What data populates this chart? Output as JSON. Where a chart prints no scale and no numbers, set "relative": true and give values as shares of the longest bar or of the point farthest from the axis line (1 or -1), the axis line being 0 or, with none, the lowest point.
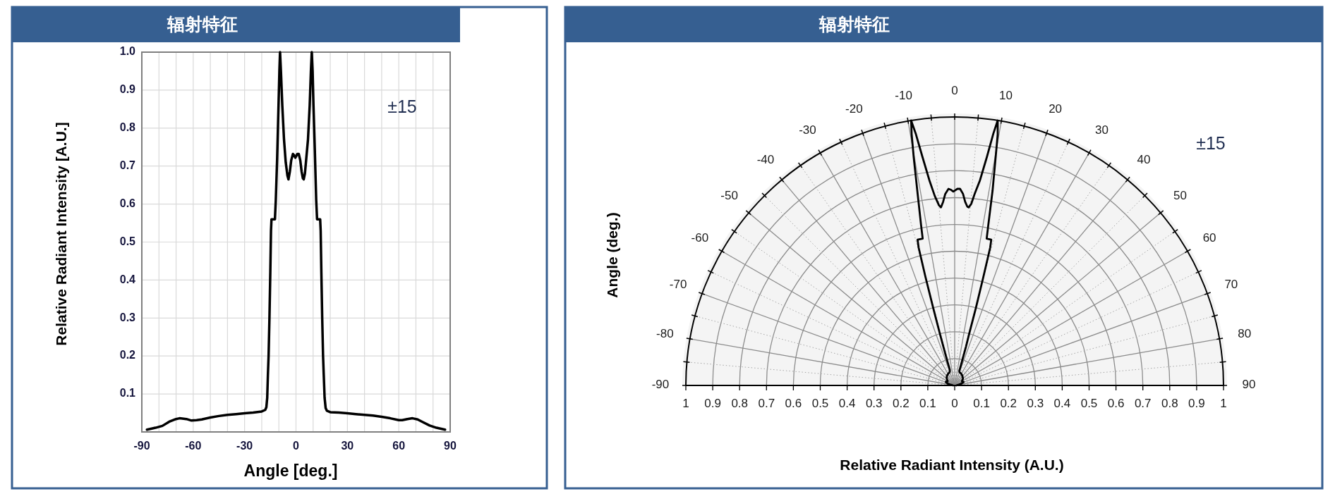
{
  "chart_data": [
    {
      "type": "line",
      "title": "辐射特征",
      "xlabel": "Angle [deg.]",
      "ylabel": "Relative Radiant Intensity [A.U.]",
      "annotations": [
        "±15"
      ],
      "x": [
        -87,
        -82,
        -78,
        -74,
        -70,
        -68,
        -64,
        -61,
        -58,
        -55,
        -50,
        -45,
        -40,
        -35,
        -30,
        -25,
        -20,
        -18,
        -17.3,
        -16.8,
        -16.4,
        -16,
        -15.5,
        -15,
        -14.6,
        -14.3,
        -12.3,
        -11.8,
        -11,
        -10.2,
        -9.7,
        -9.3,
        -8.8,
        -8,
        -7,
        -6,
        -5,
        -4.4,
        -3.6,
        -2.8,
        -1.8,
        -1,
        -0.4,
        0.2,
        0.8,
        1.6,
        2.5,
        3.3,
        4,
        4.5,
        5.2,
        6,
        7,
        8,
        8.7,
        9.2,
        9.7,
        10.2,
        11,
        11.8,
        12.3,
        14.1,
        14.4,
        14.8,
        15.3,
        15.8,
        16.2,
        16.7,
        17.3,
        18,
        20,
        25,
        30,
        35,
        40,
        45,
        50,
        55,
        60,
        62,
        65,
        68,
        71,
        74,
        78,
        82,
        87
      ],
      "series": [
        {
          "color": "#000000",
          "values": [
            0.006,
            0.011,
            0.016,
            0.027,
            0.034,
            0.036,
            0.034,
            0.03,
            0.031,
            0.033,
            0.038,
            0.042,
            0.045,
            0.047,
            0.049,
            0.051,
            0.054,
            0.058,
            0.065,
            0.09,
            0.15,
            0.2,
            0.3,
            0.42,
            0.53,
            0.56,
            0.56,
            0.61,
            0.72,
            0.86,
            0.95,
            1.0,
            0.95,
            0.86,
            0.77,
            0.71,
            0.675,
            0.665,
            0.685,
            0.715,
            0.732,
            0.728,
            0.722,
            0.727,
            0.732,
            0.732,
            0.715,
            0.685,
            0.668,
            0.665,
            0.68,
            0.72,
            0.77,
            0.86,
            0.95,
            1.0,
            0.95,
            0.86,
            0.74,
            0.61,
            0.56,
            0.56,
            0.53,
            0.42,
            0.3,
            0.2,
            0.15,
            0.09,
            0.063,
            0.056,
            0.052,
            0.051,
            0.049,
            0.047,
            0.045,
            0.043,
            0.04,
            0.036,
            0.031,
            0.031,
            0.034,
            0.036,
            0.033,
            0.026,
            0.017,
            0.011,
            0.006
          ]
        }
      ],
      "xlim": [
        -90,
        90
      ],
      "xticks": [
        -90,
        {
          "value": -80,
          "label": null
        },
        {
          "value": -70,
          "label": null
        },
        -60,
        {
          "value": -50,
          "label": null
        },
        {
          "value": -40,
          "label": null
        },
        -30,
        {
          "value": -20,
          "label": null
        },
        {
          "value": -10,
          "label": null
        },
        0,
        {
          "value": 10,
          "label": null
        },
        {
          "value": 20,
          "label": null
        },
        30,
        {
          "value": 40,
          "label": null
        },
        {
          "value": 50,
          "label": null
        },
        60,
        {
          "value": 70,
          "label": null
        },
        {
          "value": 80,
          "label": null
        },
        90
      ],
      "ylim": [
        0,
        1
      ],
      "yticks": [
        0.1,
        0.2,
        0.3,
        0.4,
        0.5,
        0.6,
        0.7,
        0.8,
        0.9,
        {
          "value": 1,
          "label": "1.0"
        }
      ],
      "grid": true
    },
    {
      "type": "line",
      "title": "辐射特征",
      "xlabel": "Relative Radiant Intensity (A.U.)",
      "ylabel": "Angle (deg.)",
      "annotations": [
        "±15",
        "-90",
        "-80",
        "-70",
        "-60",
        "-50",
        "-40",
        "-30",
        "-20",
        "-10",
        "0",
        "10",
        "20",
        "30",
        "40",
        "50",
        "60",
        "70",
        "80",
        "90"
      ],
      "x": [
        -0.006,
        -0.011,
        -0.016,
        -0.026,
        -0.032,
        -0.033,
        -0.031,
        -0.026,
        -0.026,
        -0.027,
        -0.029,
        -0.03,
        -0.029,
        -0.027,
        -0.025,
        -0.022,
        -0.018,
        -0.018,
        -0.019,
        -0.026,
        -0.042,
        -0.055,
        -0.08,
        -0.109,
        -0.134,
        -0.138,
        -0.119,
        -0.125,
        -0.137,
        -0.152,
        -0.16,
        -0.162,
        -0.145,
        -0.12,
        -0.094,
        -0.074,
        -0.059,
        -0.051,
        -0.043,
        -0.035,
        -0.023,
        -0.013,
        -0.005,
        0.003,
        0.01,
        0.02,
        0.031,
        0.039,
        0.047,
        0.052,
        0.062,
        0.075,
        0.094,
        0.12,
        0.144,
        0.16,
        0.16,
        0.152,
        0.141,
        0.125,
        0.119,
        0.136,
        0.132,
        0.107,
        0.079,
        0.054,
        0.042,
        0.026,
        0.019,
        0.017,
        0.018,
        0.022,
        0.025,
        0.027,
        0.029,
        0.03,
        0.031,
        0.029,
        0.027,
        0.027,
        0.031,
        0.033,
        0.031,
        0.025,
        0.017,
        0.011,
        0.006
      ],
      "series": [
        {
          "color": "#000000",
          "values": [
            0,
            0.002,
            0.003,
            0.007,
            0.012,
            0.013,
            0.015,
            0.015,
            0.016,
            0.019,
            0.024,
            0.03,
            0.034,
            0.04,
            0.043,
            0.047,
            0.052,
            0.056,
            0.063,
            0.087,
            0.146,
            0.195,
            0.293,
            0.411,
            0.52,
            0.55,
            0.554,
            0.605,
            0.716,
            0.857,
            0.948,
            1,
            0.951,
            0.863,
            0.774,
            0.715,
            0.681,
            0.672,
            0.693,
            0.723,
            0.742,
            0.738,
            0.732,
            0.737,
            0.742,
            0.742,
            0.723,
            0.693,
            0.675,
            0.672,
            0.686,
            0.725,
            0.774,
            0.863,
            0.951,
            1,
            0.948,
            0.857,
            0.736,
            0.605,
            0.554,
            0.55,
            0.52,
            0.411,
            0.293,
            0.195,
            0.146,
            0.087,
            0.061,
            0.054,
            0.05,
            0.047,
            0.043,
            0.04,
            0.034,
            0.03,
            0.026,
            0.021,
            0.016,
            0.015,
            0.014,
            0.013,
            0.011,
            0.007,
            0.004,
            0.002,
            0
          ]
        }
      ],
      "relative": true,
      "xlim": [
        -1,
        1
      ],
      "xticks": [
        {
          "value": -1,
          "label": "1"
        },
        {
          "value": -0.9,
          "label": "0.9"
        },
        {
          "value": -0.8,
          "label": "0.8"
        },
        {
          "value": -0.7,
          "label": "0.7"
        },
        {
          "value": -0.6,
          "label": "0.6"
        },
        {
          "value": -0.5,
          "label": "0.5"
        },
        {
          "value": -0.4,
          "label": "0.4"
        },
        {
          "value": -0.3,
          "label": "0.3"
        },
        {
          "value": -0.2,
          "label": "0.2"
        },
        {
          "value": -0.1,
          "label": "0.1"
        },
        0,
        0.1,
        0.2,
        0.3,
        0.4,
        0.5,
        0.6,
        0.7,
        0.8,
        0.9,
        1
      ],
      "tick_labels": "x"
    }
  ]
}
